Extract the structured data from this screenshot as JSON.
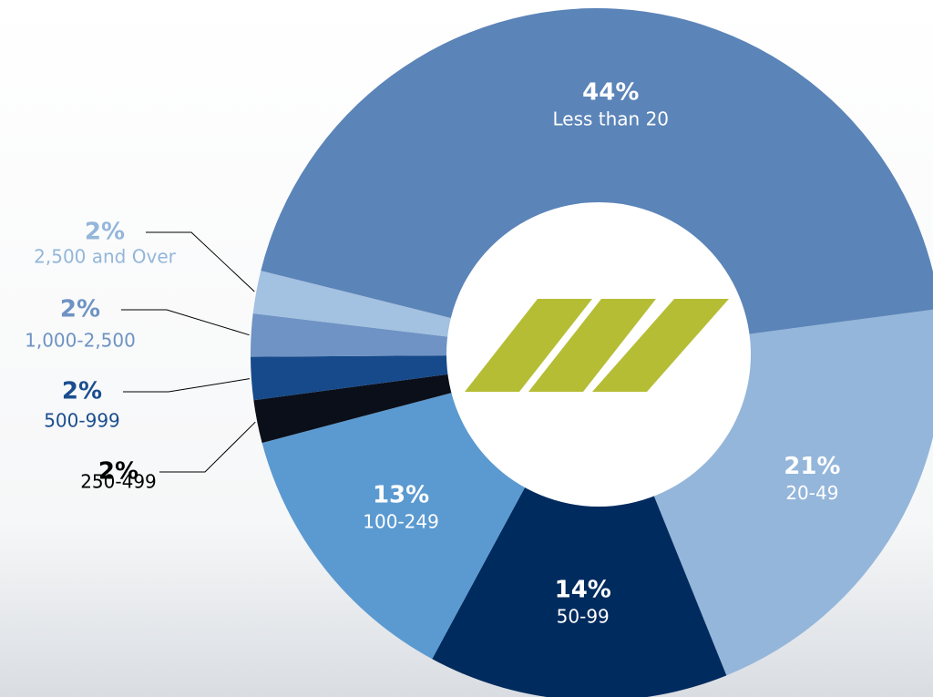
{
  "chart_data": {
    "type": "pie",
    "donut": true,
    "categories": [
      "20-49",
      "50-99",
      "100-249",
      "250-499",
      "500-999",
      "1,000-2,500",
      "2,500 and Over",
      "Less than 20"
    ],
    "values": [
      21,
      14,
      13,
      2,
      2,
      2,
      2,
      44
    ],
    "value_labels": [
      "21%",
      "14%",
      "13%",
      "2%",
      "2%",
      "2%",
      "2%",
      "44%"
    ],
    "colors": [
      "#94b6da",
      "#002b5e",
      "#5b9ad0",
      "#0a0f1a",
      "#164a8a",
      "#6e93c4",
      "#a3c1e0",
      "#5b84b8"
    ]
  }
}
